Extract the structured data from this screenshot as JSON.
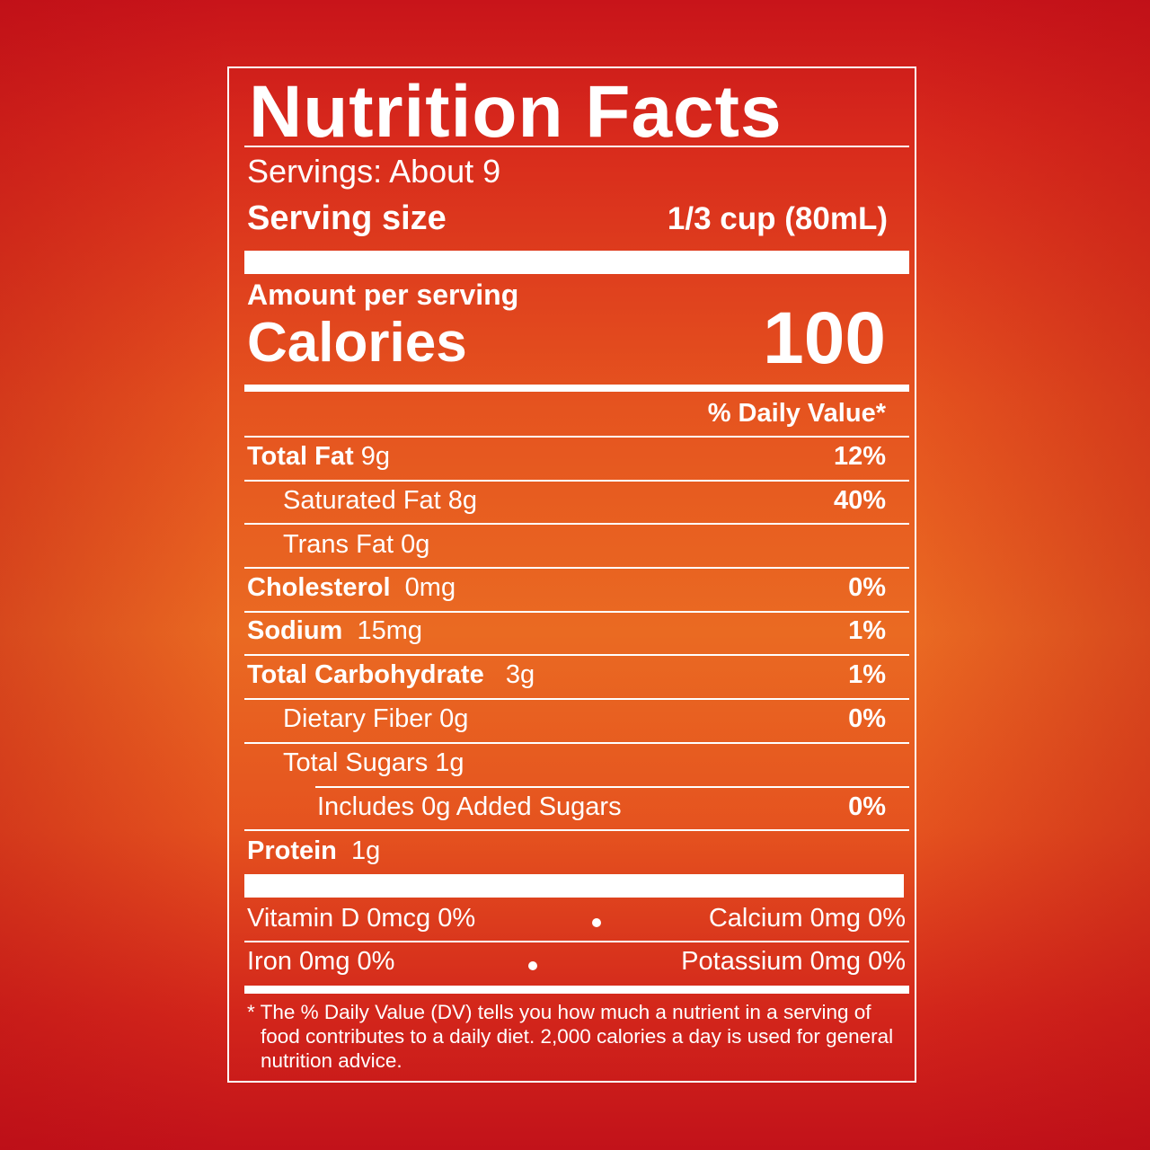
{
  "title": "Nutrition Facts",
  "servings": "Servings: About 9",
  "serving_size_label": "Serving size",
  "serving_size_value": "1/3 cup (80mL)",
  "amount_per_serving": "Amount per serving",
  "calories_label": "Calories",
  "calories_value": "100",
  "daily_value_header": "% Daily Value*",
  "nutrients": [
    {
      "name": "Total Fat",
      "amount": "9g",
      "dv": "12%"
    },
    {
      "name": "Saturated Fat",
      "amount": "8g",
      "dv": "40%"
    },
    {
      "name": "Trans Fat",
      "amount": "0g",
      "dv": ""
    },
    {
      "name": "Cholesterol",
      "amount": "0mg",
      "dv": "0%"
    },
    {
      "name": "Sodium",
      "amount": "15mg",
      "dv": "1%"
    },
    {
      "name": "Total Carbohydrate",
      "amount": "3g",
      "dv": "1%"
    },
    {
      "name": "Dietary Fiber",
      "amount": "0g",
      "dv": "0%"
    },
    {
      "name": "Total Sugars",
      "amount": "1g",
      "dv": ""
    },
    {
      "name": "Includes 0g Added Sugars",
      "amount": "",
      "dv": "0%"
    },
    {
      "name": "Protein",
      "amount": "1g",
      "dv": ""
    }
  ],
  "vitamins": {
    "vitamin_d": "Vitamin D 0mcg 0%",
    "calcium": "Calcium 0mg 0%",
    "iron": "Iron 0mg 0%",
    "potassium": "Potassium 0mg 0%"
  },
  "footnote": "* The % Daily Value (DV) tells you how much a nutrient in a serving of food contributes to a daily diet. 2,000 calories a day is used for general nutrition advice.",
  "colors": {
    "background_top": "#c8141a",
    "background_mid": "#ea6a22",
    "text": "#ffffff"
  }
}
